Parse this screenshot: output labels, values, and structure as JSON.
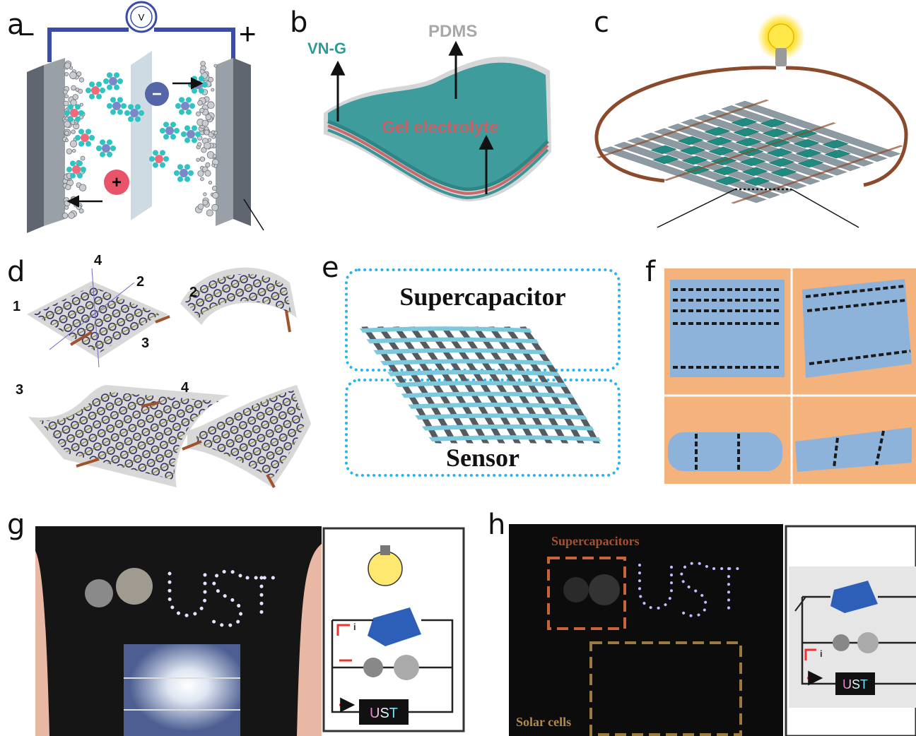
{
  "panels": [
    {
      "label": "a",
      "annotations": [
        "V",
        "−",
        "+",
        "+",
        "−"
      ]
    },
    {
      "label": "b",
      "annotations": [
        "VN-G",
        "PDMS",
        "Gel electrolyte"
      ]
    },
    {
      "label": "c"
    },
    {
      "label": "d",
      "annotations": [
        "4",
        "2",
        "1",
        "3",
        "2",
        "3",
        "4"
      ]
    },
    {
      "label": "e",
      "annotations": [
        "Supercapacitor",
        "Sensor"
      ]
    },
    {
      "label": "f"
    },
    {
      "label": "g",
      "annotations": [
        "i",
        "UST"
      ]
    },
    {
      "label": "h",
      "annotations": [
        "Supercapacitors",
        "Solar cells",
        "i",
        "UST"
      ]
    }
  ]
}
